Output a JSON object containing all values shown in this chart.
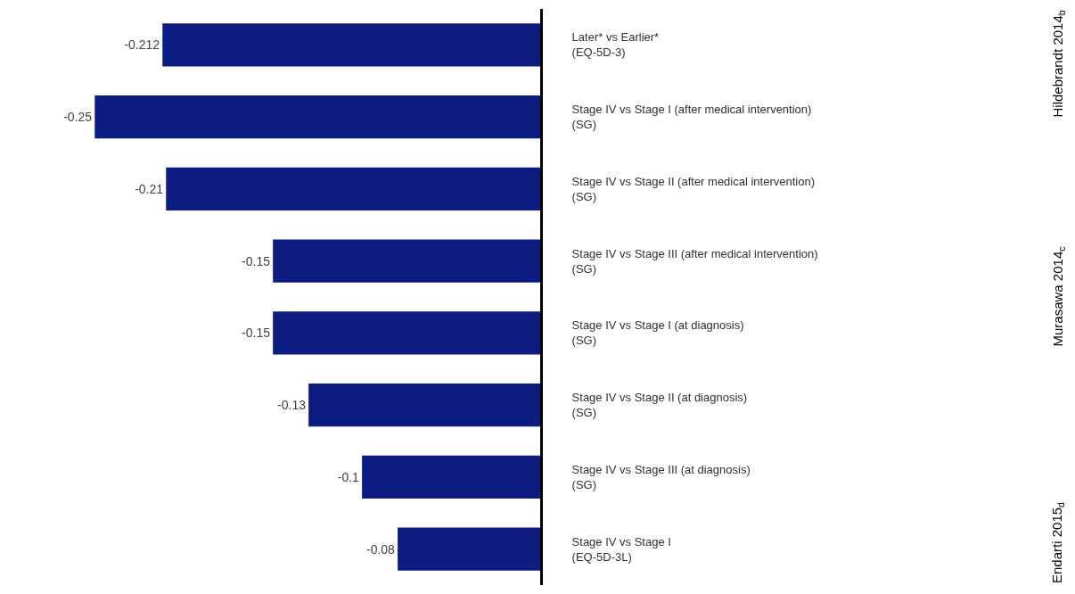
{
  "chart_data": {
    "type": "bar",
    "orientation": "horizontal",
    "categories": [
      "Later* vs Earlier*\n(EQ-5D-3)",
      "Stage IV vs Stage I (after medical intervention)\n(SG)",
      "Stage IV vs Stage II (after medical intervention)\n(SG)",
      "Stage IV vs Stage III (after medical intervention)\n(SG)",
      "Stage IV vs Stage I (at diagnosis)\n(SG)",
      "Stage IV vs Stage II (at diagnosis)\n(SG)",
      "Stage IV vs Stage III (at diagnosis)\n(SG)",
      "Stage IV vs Stage I\n(EQ-5D-3L)"
    ],
    "values": [
      -0.212,
      -0.25,
      -0.21,
      -0.15,
      -0.15,
      -0.13,
      -0.1,
      -0.08
    ],
    "color": "#0c1c80",
    "data_labels": true,
    "annotations": [
      "Hildebrandt 2014$_{b}$",
      "Murasawa 2014$_{c}$",
      "Endarti 2015$_{d}$"
    ]
  }
}
